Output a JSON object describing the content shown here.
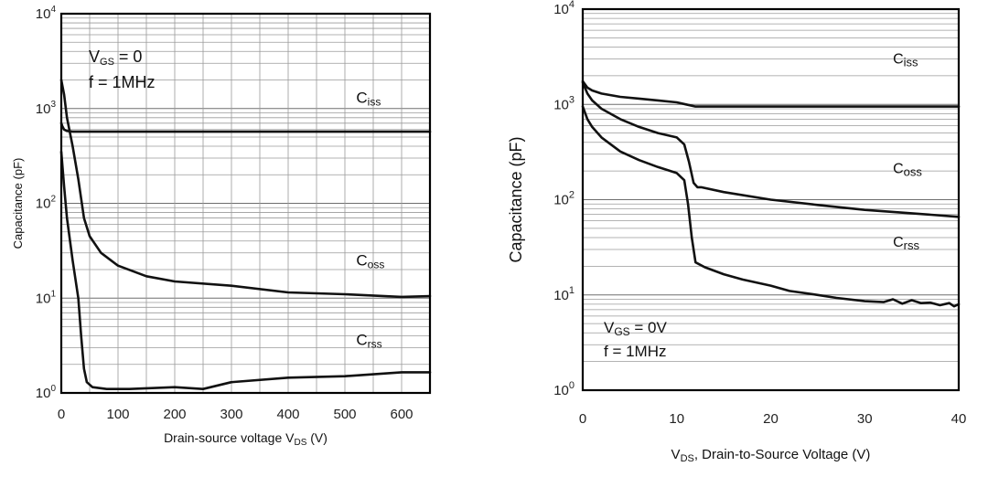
{
  "chart_data": [
    {
      "type": "line",
      "scale_y": "log",
      "title": "",
      "xlabel_main": "Drain-source voltage V",
      "xlabel_sub": "DS",
      "xlabel_unit": " (V)",
      "ylabel": "Capacitance (pF)",
      "xlim": [
        0,
        650
      ],
      "ylim": [
        1,
        10000
      ],
      "x_ticks": [
        0,
        100,
        200,
        300,
        400,
        500,
        600
      ],
      "x_tick_labels": [
        "0",
        "100",
        "200",
        "300",
        "400",
        "500",
        "600"
      ],
      "y_ticks": [
        1,
        10,
        100,
        1000,
        10000
      ],
      "y_tick_base": [
        "10",
        "10",
        "10",
        "10",
        "10"
      ],
      "y_tick_exp": [
        "0",
        "1",
        "2",
        "3",
        "4"
      ],
      "conditions": [
        {
          "main": "V",
          "sub": "GS",
          "rest": " = 0"
        },
        {
          "main": "f = 1MHz",
          "sub": "",
          "rest": ""
        }
      ],
      "series": [
        {
          "name": "Ciss",
          "label_main": "C",
          "label_sub": "iss",
          "label_at": [
            520,
            1150
          ],
          "x": [
            0,
            2,
            5,
            10,
            20,
            40,
            60,
            100,
            200,
            300,
            400,
            500,
            600,
            650
          ],
          "y": [
            700,
            650,
            600,
            580,
            570,
            570,
            570,
            570,
            570,
            570,
            570,
            570,
            570,
            570
          ]
        },
        {
          "name": "Coss",
          "label_main": "C",
          "label_sub": "oss",
          "label_at": [
            520,
            22
          ],
          "x": [
            0,
            5,
            10,
            20,
            30,
            40,
            50,
            70,
            100,
            150,
            200,
            300,
            400,
            500,
            600,
            650
          ],
          "y": [
            2000,
            1400,
            800,
            400,
            180,
            70,
            45,
            30,
            22,
            17,
            15,
            13.5,
            11.5,
            11,
            10.3,
            10.5
          ]
        },
        {
          "name": "Crss",
          "label_main": "C",
          "label_sub": "rss",
          "label_at": [
            520,
            3.2
          ],
          "x": [
            0,
            5,
            10,
            20,
            30,
            35,
            40,
            45,
            55,
            80,
            120,
            200,
            250,
            300,
            400,
            500,
            600,
            650
          ],
          "y": [
            350,
            150,
            70,
            25,
            10,
            4,
            1.8,
            1.3,
            1.15,
            1.1,
            1.1,
            1.15,
            1.1,
            1.3,
            1.45,
            1.5,
            1.65,
            1.65
          ]
        }
      ]
    },
    {
      "type": "line",
      "scale_y": "log",
      "title": "",
      "xlabel_main": "V",
      "xlabel_sub": "DS",
      "xlabel_unit": ", Drain-to-Source Voltage (V)",
      "ylabel": "Capacitance (pF)",
      "xlim": [
        0,
        40
      ],
      "ylim": [
        1,
        10000
      ],
      "x_ticks": [
        0,
        10,
        20,
        30,
        40
      ],
      "x_tick_labels": [
        "0",
        "10",
        "20",
        "30",
        "40"
      ],
      "y_ticks": [
        1,
        10,
        100,
        1000,
        10000
      ],
      "y_tick_base": [
        "10",
        "10",
        "10",
        "10",
        "10"
      ],
      "y_tick_exp": [
        "0",
        "1",
        "2",
        "3",
        "4"
      ],
      "conditions": [
        {
          "main": "V",
          "sub": "GS",
          "rest": " = 0V"
        },
        {
          "main": "f = 1MHz",
          "sub": "",
          "rest": ""
        }
      ],
      "series": [
        {
          "name": "Ciss",
          "label_main": "C",
          "label_sub": "iss",
          "label_at": [
            33,
            2700
          ],
          "x": [
            0,
            0.5,
            1,
            2,
            4,
            6,
            8,
            10,
            11,
            12,
            15,
            20,
            30,
            40
          ],
          "y": [
            1750,
            1500,
            1400,
            1300,
            1200,
            1150,
            1100,
            1050,
            1000,
            950,
            950,
            950,
            950,
            950
          ]
        },
        {
          "name": "Coss",
          "label_main": "C",
          "label_sub": "oss",
          "label_at": [
            33,
            190
          ],
          "x": [
            0,
            0.5,
            1,
            2,
            4,
            6,
            8,
            10,
            10.8,
            11.3,
            11.8,
            12.2,
            12.6,
            15,
            20,
            25,
            30,
            35,
            40
          ],
          "y": [
            1700,
            1300,
            1100,
            900,
            700,
            580,
            500,
            450,
            380,
            250,
            150,
            135,
            135,
            120,
            100,
            88,
            78,
            72,
            66
          ]
        },
        {
          "name": "Crss",
          "label_main": "C",
          "label_sub": "rss",
          "label_at": [
            33,
            32
          ],
          "x": [
            0,
            0.5,
            1,
            2,
            4,
            6,
            8,
            10,
            10.8,
            11.2,
            11.6,
            12,
            13,
            15,
            17,
            20,
            22,
            25,
            27,
            30,
            32,
            33,
            34,
            35,
            36,
            37,
            38,
            39,
            39.5,
            40
          ],
          "y": [
            950,
            700,
            580,
            450,
            320,
            260,
            220,
            190,
            160,
            90,
            40,
            22,
            19.5,
            16.5,
            14.5,
            12.5,
            11,
            10,
            9.3,
            8.6,
            8.4,
            9,
            8.1,
            8.8,
            8.2,
            8.3,
            7.8,
            8.2,
            7.6,
            8
          ]
        }
      ]
    }
  ]
}
